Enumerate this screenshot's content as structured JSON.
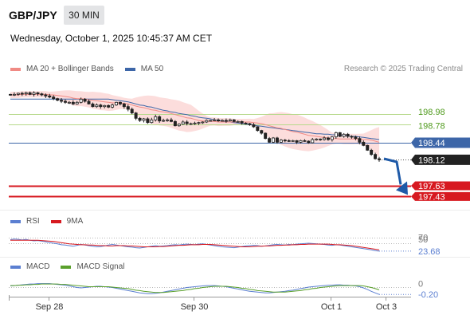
{
  "header": {
    "symbol": "GBP/JPY",
    "timeframe": "30 MIN",
    "datetime": "Wednesday, October 1, 2025 10:45:37 AM CET",
    "credit": "Research © 2025 Trading Central"
  },
  "colors": {
    "ma20": "#f08a84",
    "ma50": "#3d66a8",
    "bollinger": "#fbd7d6",
    "pivot": "#b7d98b",
    "support": "#d71920",
    "current": "#222222",
    "forecast": "#1f5aa8",
    "rsi": "#5b7fd1",
    "rsi_9ma": "#d71920",
    "macd": "#5b7fd1",
    "macd_signal": "#5aa02c"
  },
  "chart_data": [
    {
      "type": "candlestick",
      "title": "",
      "legend": [
        "MA 20 + Bollinger Bands",
        "MA 50"
      ],
      "legend_position": "top-left",
      "ylim": [
        197.3,
        199.55
      ],
      "x_ticks": [
        "Sep 28",
        "Sep 30",
        "Oct 1",
        "Oct 3"
      ],
      "price_levels": [
        {
          "value": 198.98,
          "label": "198.98",
          "kind": "resistance"
        },
        {
          "value": 198.78,
          "label": "198.78",
          "kind": "resistance"
        },
        {
          "value": 198.44,
          "label": "198.44",
          "kind": "pivot"
        },
        {
          "value": 198.12,
          "label": "198.12",
          "kind": "current"
        },
        {
          "value": 197.63,
          "label": "197.63",
          "kind": "support"
        },
        {
          "value": 197.43,
          "label": "197.43",
          "kind": "support"
        }
      ],
      "forecast": {
        "direction": "down",
        "from": 198.14,
        "to": 197.52
      },
      "close": [
        199.34,
        199.35,
        199.37,
        199.36,
        199.38,
        199.35,
        199.38,
        199.36,
        199.34,
        199.32,
        199.3,
        199.27,
        199.24,
        199.22,
        199.2,
        199.2,
        199.17,
        199.2,
        199.26,
        199.22,
        199.17,
        199.12,
        199.15,
        199.12,
        199.14,
        199.11,
        199.15,
        199.2,
        199.17,
        199.12,
        199.07,
        199.0,
        198.9,
        198.86,
        198.89,
        198.82,
        198.87,
        198.93,
        198.85,
        198.86,
        198.87,
        198.84,
        198.76,
        198.79,
        198.83,
        198.8,
        198.8,
        198.81,
        198.82,
        198.83,
        198.86,
        198.86,
        198.87,
        198.85,
        198.86,
        198.85,
        198.87,
        198.84,
        198.84,
        198.81,
        198.8,
        198.78,
        198.74,
        198.67,
        198.62,
        198.52,
        198.45,
        198.53,
        198.45,
        198.49,
        198.48,
        198.47,
        198.48,
        198.45,
        198.48,
        198.47,
        198.44,
        198.5,
        198.51,
        198.5,
        198.53,
        198.5,
        198.55,
        198.63,
        198.56,
        198.6,
        198.56,
        198.55,
        198.52,
        198.45,
        198.39,
        198.3,
        198.22,
        198.14,
        198.12
      ],
      "ma20": [
        199.34,
        199.34,
        199.34,
        199.35,
        199.35,
        199.35,
        199.35,
        199.35,
        199.35,
        199.35,
        199.34,
        199.34,
        199.33,
        199.32,
        199.31,
        199.3,
        199.28,
        199.27,
        199.27,
        199.26,
        199.25,
        199.24,
        199.23,
        199.22,
        199.21,
        199.2,
        199.19,
        199.19,
        199.19,
        199.18,
        199.17,
        199.15,
        199.13,
        199.11,
        199.1,
        199.08,
        199.06,
        199.05,
        199.03,
        199.02,
        199.01,
        198.99,
        198.97,
        198.95,
        198.93,
        198.91,
        198.9,
        198.88,
        198.86,
        198.85,
        198.84,
        198.84,
        198.84,
        198.83,
        198.83,
        198.83,
        198.83,
        198.83,
        198.83,
        198.83,
        198.83,
        198.83,
        198.82,
        198.81,
        198.8,
        198.78,
        198.76,
        198.74,
        198.72,
        198.71,
        198.69,
        198.67,
        198.65,
        198.64,
        198.62,
        198.6,
        198.58,
        198.57,
        198.56,
        198.55,
        198.54,
        198.53,
        198.52,
        198.52,
        198.51,
        198.51,
        198.51,
        198.51,
        198.51,
        198.51,
        198.5,
        198.5,
        198.49,
        198.47,
        198.45
      ],
      "ma50": [
        199.26,
        199.26,
        199.26,
        199.26,
        199.26,
        199.26,
        199.26,
        199.26,
        199.26,
        199.26,
        199.26,
        199.26,
        199.26,
        199.26,
        199.26,
        199.26,
        199.26,
        199.26,
        199.26,
        199.26,
        199.26,
        199.26,
        199.26,
        199.26,
        199.26,
        199.26,
        199.25,
        199.24,
        199.23,
        199.22,
        199.21,
        199.19,
        199.17,
        199.15,
        199.14,
        199.12,
        199.11,
        199.09,
        199.07,
        199.05,
        199.04,
        199.02,
        199.01,
        198.99,
        198.98,
        198.97,
        198.95,
        198.94,
        198.92,
        198.91,
        198.9,
        198.89,
        198.87,
        198.86,
        198.85,
        198.84,
        198.83,
        198.82,
        198.81,
        198.8,
        198.79,
        198.78,
        198.77,
        198.76,
        198.75,
        198.74,
        198.73,
        198.72,
        198.71,
        198.7,
        198.69,
        198.68,
        198.67,
        198.66,
        198.65,
        198.64,
        198.63,
        198.62,
        198.61,
        198.61,
        198.6,
        198.6,
        198.59,
        198.59,
        198.58,
        198.58,
        198.57,
        198.56,
        198.56,
        198.55,
        198.54,
        198.53,
        198.52,
        198.51,
        198.5
      ]
    },
    {
      "type": "line",
      "title": "",
      "legend": [
        "RSI",
        "9MA"
      ],
      "legend_position": "top-left",
      "ylim": [
        10,
        90
      ],
      "y_ticks": [
        {
          "value": 70,
          "label": "70"
        },
        {
          "value": 50,
          "label": "50"
        },
        {
          "value": 23.68,
          "label": "23.68",
          "current": true
        }
      ],
      "rsi": [
        62,
        64,
        63,
        61,
        63,
        60,
        58,
        59,
        57,
        55,
        52,
        50,
        48,
        45,
        44,
        42,
        40,
        43,
        46,
        44,
        42,
        40,
        38,
        39,
        41,
        44,
        46,
        44,
        42,
        40,
        38,
        37,
        35,
        34,
        36,
        38,
        40,
        42,
        40,
        41,
        42,
        44,
        45,
        44,
        46,
        47,
        46,
        45,
        47,
        48,
        46,
        44,
        42,
        40,
        38,
        37,
        36,
        35,
        37,
        39,
        41,
        42,
        43,
        42,
        40,
        41,
        43,
        45,
        46,
        45,
        44,
        46,
        45,
        47,
        48,
        49,
        50,
        49,
        48,
        47,
        46,
        44,
        43,
        45,
        44,
        42,
        40,
        38,
        36,
        34,
        32,
        30,
        28,
        25,
        23.68
      ],
      "rsi_9ma": [
        60,
        60,
        60,
        60,
        60,
        60,
        60,
        60,
        59,
        58,
        57,
        56,
        54,
        52,
        50,
        48,
        47,
        46,
        45,
        45,
        44,
        44,
        43,
        42,
        42,
        41,
        41,
        42,
        42,
        42,
        41,
        41,
        40,
        39,
        38,
        38,
        38,
        38,
        39,
        39,
        40,
        41,
        42,
        43,
        43,
        44,
        45,
        45,
        45,
        46,
        46,
        46,
        45,
        44,
        43,
        42,
        41,
        40,
        39,
        38,
        38,
        38,
        39,
        40,
        40,
        41,
        41,
        42,
        43,
        43,
        44,
        44,
        45,
        45,
        46,
        46,
        47,
        47,
        47,
        47,
        47,
        47,
        46,
        45,
        45,
        44,
        43,
        42,
        40,
        38,
        36,
        34,
        32,
        30,
        28
      ]
    },
    {
      "type": "line",
      "title": "",
      "legend": [
        "MACD",
        "MACD Signal"
      ],
      "legend_position": "top-left",
      "ylim": [
        -0.32,
        0.3
      ],
      "y_ticks": [
        {
          "value": 0,
          "label": "0"
        },
        {
          "value": -0.2,
          "label": "-0.20",
          "current": true
        }
      ],
      "macd": [
        0.02,
        0.03,
        0.04,
        0.05,
        0.06,
        0.07,
        0.07,
        0.08,
        0.08,
        0.08,
        0.08,
        0.07,
        0.06,
        0.05,
        0.04,
        0.02,
        0.0,
        -0.02,
        -0.03,
        -0.02,
        -0.01,
        0.0,
        0.01,
        0.01,
        0.0,
        -0.01,
        -0.02,
        -0.04,
        -0.06,
        -0.08,
        -0.1,
        -0.12,
        -0.14,
        -0.16,
        -0.17,
        -0.18,
        -0.18,
        -0.17,
        -0.16,
        -0.14,
        -0.12,
        -0.1,
        -0.08,
        -0.06,
        -0.04,
        -0.02,
        -0.01,
        0.0,
        0.01,
        0.02,
        0.03,
        0.03,
        0.03,
        0.02,
        0.01,
        0.0,
        -0.02,
        -0.04,
        -0.06,
        -0.08,
        -0.1,
        -0.12,
        -0.13,
        -0.14,
        -0.15,
        -0.16,
        -0.16,
        -0.15,
        -0.14,
        -0.13,
        -0.12,
        -0.1,
        -0.09,
        -0.07,
        -0.05,
        -0.03,
        -0.01,
        0.0,
        0.01,
        0.02,
        0.03,
        0.04,
        0.04,
        0.05,
        0.05,
        0.04,
        0.04,
        0.03,
        0.02,
        0.0,
        -0.03,
        -0.07,
        -0.12,
        -0.16,
        -0.2
      ],
      "macd_signal": [
        0.03,
        0.03,
        0.04,
        0.04,
        0.05,
        0.05,
        0.06,
        0.06,
        0.07,
        0.07,
        0.07,
        0.07,
        0.07,
        0.06,
        0.06,
        0.05,
        0.04,
        0.03,
        0.02,
        0.01,
        0.0,
        0.0,
        0.0,
        0.0,
        0.0,
        0.0,
        -0.01,
        -0.02,
        -0.03,
        -0.04,
        -0.05,
        -0.07,
        -0.09,
        -0.1,
        -0.12,
        -0.13,
        -0.14,
        -0.15,
        -0.15,
        -0.15,
        -0.14,
        -0.13,
        -0.12,
        -0.11,
        -0.1,
        -0.08,
        -0.07,
        -0.05,
        -0.04,
        -0.02,
        -0.01,
        0.0,
        0.01,
        0.01,
        0.01,
        0.01,
        0.0,
        -0.01,
        -0.02,
        -0.04,
        -0.05,
        -0.07,
        -0.08,
        -0.1,
        -0.11,
        -0.12,
        -0.13,
        -0.14,
        -0.14,
        -0.14,
        -0.14,
        -0.13,
        -0.12,
        -0.11,
        -0.1,
        -0.08,
        -0.07,
        -0.05,
        -0.04,
        -0.02,
        -0.01,
        0.0,
        0.01,
        0.02,
        0.03,
        0.03,
        0.03,
        0.03,
        0.03,
        0.03,
        0.02,
        0.0,
        -0.02,
        -0.05,
        -0.08
      ]
    }
  ]
}
